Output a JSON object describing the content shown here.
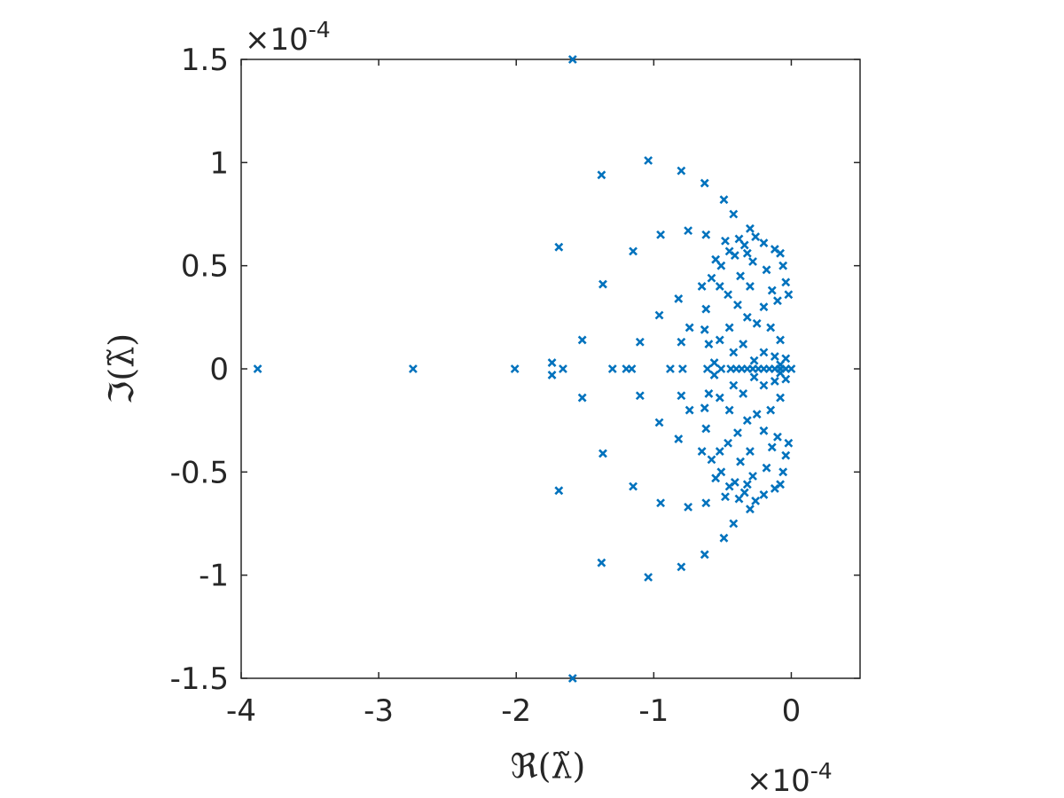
{
  "chart_data": {
    "type": "scatter",
    "marker": "x",
    "color": "#0072BD",
    "xlabel": "ℜ(λ̃)",
    "ylabel": "ℑ(λ̃)",
    "x_multiplier": {
      "base": "×10",
      "exponent": "-4"
    },
    "y_multiplier": {
      "base": "×10",
      "exponent": "-4"
    },
    "xlim": [
      -4.0,
      0.5
    ],
    "ylim": [
      -1.5,
      1.5
    ],
    "x_ticks": [
      -4,
      -3,
      -2,
      -1,
      0
    ],
    "x_tick_labels": [
      "-4",
      "-3",
      "-2",
      "-1",
      "0"
    ],
    "y_ticks": [
      -1.5,
      -1,
      -0.5,
      0,
      0.5,
      1,
      1.5
    ],
    "y_tick_labels": [
      "-1.5",
      "-1",
      "-0.5",
      "0",
      "0.5",
      "1",
      "1.5"
    ],
    "grid": false,
    "axis_box": true,
    "points_upper": [
      [
        -1.59,
        1.5
      ],
      [
        -1.04,
        1.01
      ],
      [
        -0.8,
        0.96
      ],
      [
        -1.38,
        0.94
      ],
      [
        -0.63,
        0.9
      ],
      [
        -0.49,
        0.82
      ],
      [
        -0.42,
        0.75
      ],
      [
        -0.75,
        0.67
      ],
      [
        -0.3,
        0.68
      ],
      [
        -0.95,
        0.65
      ],
      [
        -0.62,
        0.65
      ],
      [
        -1.69,
        0.59
      ],
      [
        -0.26,
        0.64
      ],
      [
        -0.48,
        0.62
      ],
      [
        -0.38,
        0.63
      ],
      [
        -1.15,
        0.57
      ],
      [
        -0.2,
        0.61
      ],
      [
        -0.34,
        0.6
      ],
      [
        -0.45,
        0.57
      ],
      [
        -0.32,
        0.56
      ],
      [
        -0.41,
        0.55
      ],
      [
        -0.12,
        0.58
      ],
      [
        -0.08,
        0.56
      ],
      [
        -0.55,
        0.53
      ],
      [
        -0.28,
        0.52
      ],
      [
        -0.51,
        0.5
      ],
      [
        -0.06,
        0.5
      ],
      [
        -0.58,
        0.44
      ],
      [
        -0.37,
        0.45
      ],
      [
        -0.18,
        0.48
      ],
      [
        -1.37,
        0.41
      ],
      [
        -0.65,
        0.4
      ],
      [
        -0.52,
        0.4
      ],
      [
        -0.04,
        0.42
      ],
      [
        -0.82,
        0.34
      ],
      [
        -0.46,
        0.36
      ],
      [
        -0.3,
        0.4
      ],
      [
        -0.14,
        0.38
      ],
      [
        -0.1,
        0.33
      ],
      [
        -0.02,
        0.36
      ],
      [
        -0.39,
        0.31
      ],
      [
        -0.62,
        0.29
      ],
      [
        -0.2,
        0.3
      ],
      [
        -0.96,
        0.26
      ],
      [
        -0.25,
        0.22
      ],
      [
        -0.32,
        0.25
      ],
      [
        -0.74,
        0.2
      ],
      [
        -0.63,
        0.19
      ],
      [
        -0.45,
        0.2
      ],
      [
        -0.15,
        0.2
      ],
      [
        -0.52,
        0.14
      ],
      [
        -1.52,
        0.14
      ],
      [
        -1.1,
        0.13
      ],
      [
        -0.8,
        0.13
      ],
      [
        -0.6,
        0.12
      ],
      [
        -0.35,
        0.12
      ],
      [
        -0.08,
        0.14
      ],
      [
        -0.42,
        0.08
      ],
      [
        -0.2,
        0.08
      ],
      [
        -0.12,
        0.06
      ],
      [
        -0.56,
        0.03
      ],
      [
        -0.27,
        0.04
      ],
      [
        -1.74,
        0.03
      ],
      [
        -0.08,
        0.02
      ],
      [
        -0.04,
        0.05
      ]
    ],
    "points_axis": [
      [
        -3.88,
        0.0
      ],
      [
        -2.75,
        0.0
      ],
      [
        -2.01,
        0.0
      ],
      [
        -1.66,
        0.0
      ],
      [
        -1.3,
        0.0
      ],
      [
        -1.2,
        0.0
      ],
      [
        -1.16,
        0.0
      ],
      [
        -0.88,
        0.0
      ],
      [
        -0.79,
        0.0
      ],
      [
        -0.61,
        0.0
      ],
      [
        -0.51,
        0.0
      ],
      [
        -0.44,
        0.0
      ],
      [
        -0.4,
        0.0
      ],
      [
        -0.36,
        0.0
      ],
      [
        -0.32,
        0.0
      ],
      [
        -0.28,
        0.0
      ],
      [
        -0.24,
        0.0
      ],
      [
        -0.2,
        0.0
      ],
      [
        -0.16,
        0.0
      ],
      [
        -0.12,
        0.0
      ],
      [
        -0.08,
        0.0
      ],
      [
        -0.04,
        0.0
      ],
      [
        0.0,
        0.0
      ]
    ]
  }
}
